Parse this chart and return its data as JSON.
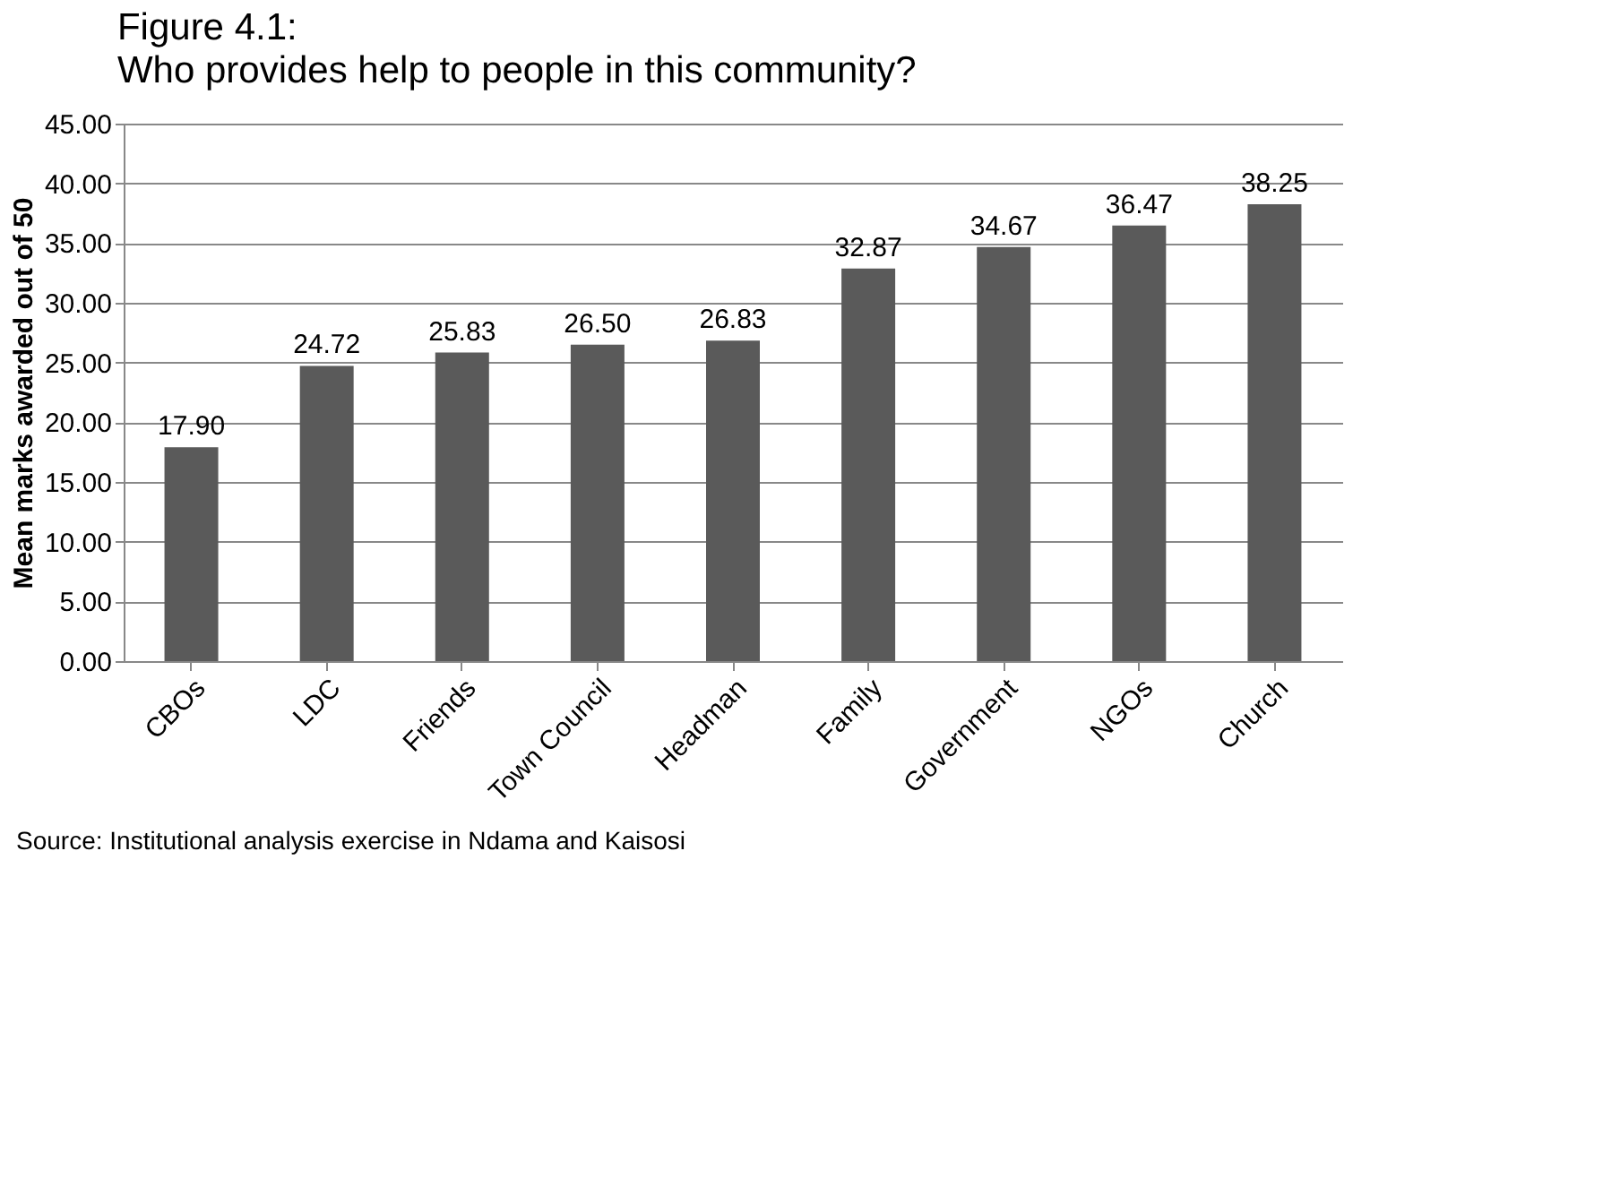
{
  "chart_data": {
    "type": "bar",
    "title": "Figure 4.1:",
    "subtitle": "Who provides help to people in this community?",
    "ylabel": "Mean marks awarded out of 50",
    "categories": [
      "CBOs",
      "LDC",
      "Friends",
      "Town Council",
      "Headman",
      "Family",
      "Government",
      "NGOs",
      "Church"
    ],
    "values": [
      17.9,
      24.72,
      25.83,
      26.5,
      26.83,
      32.87,
      34.67,
      36.47,
      38.25
    ],
    "value_labels": [
      "17.90",
      "24.72",
      "25.83",
      "26.50",
      "26.83",
      "32.87",
      "34.67",
      "36.47",
      "38.25"
    ],
    "color": "#5a5a5a",
    "ylim": [
      0,
      45
    ],
    "yticks": [
      {
        "value": 0,
        "label": "0.00"
      },
      {
        "value": 5,
        "label": "5.00"
      },
      {
        "value": 10,
        "label": "10.00"
      },
      {
        "value": 15,
        "label": "15.00"
      },
      {
        "value": 20,
        "label": "20.00"
      },
      {
        "value": 25,
        "label": "25.00"
      },
      {
        "value": 30,
        "label": "30.00"
      },
      {
        "value": 35,
        "label": "35.00"
      },
      {
        "value": 40,
        "label": "40.00"
      },
      {
        "value": 45,
        "label": "45.00"
      }
    ],
    "grid": "y",
    "annotations": [
      "Source: Institutional analysis exercise in Ndama and Kaisosi"
    ]
  }
}
